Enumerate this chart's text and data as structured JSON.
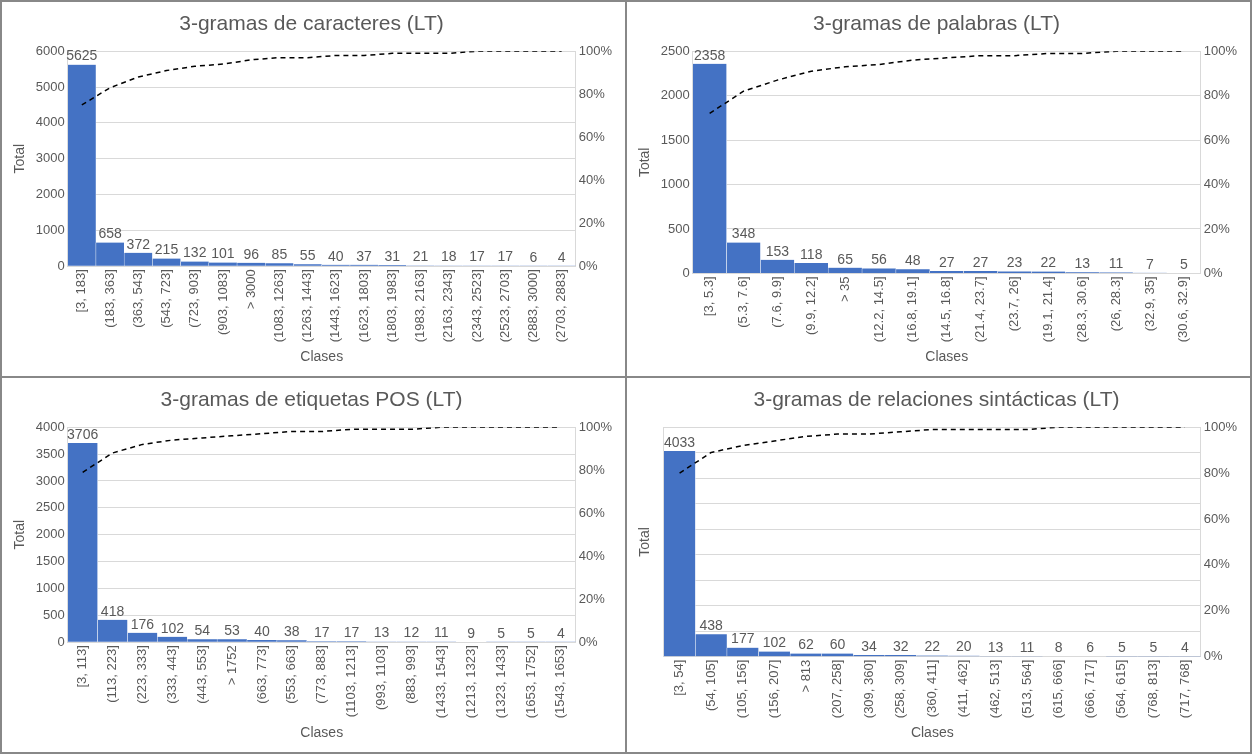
{
  "chart_data": [
    {
      "type": "bar",
      "title": "3-gramas de caracteres (LT)",
      "xlabel": "Clases",
      "ylabel": "Total",
      "grid": "y",
      "legend": false,
      "categories": [
        "[3, 183]",
        "(183, 363]",
        "(363, 543]",
        "(543, 723]",
        "(723, 903]",
        "(903, 1083]",
        "> 3000",
        "(1083, 1263]",
        "(1263, 1443]",
        "(1443, 1623]",
        "(1623, 1803]",
        "(1803, 1983]",
        "(1983, 2163]",
        "(2163, 2343]",
        "(2343, 2523]",
        "(2523, 2703]",
        "(2883, 3000]",
        "(2703, 2883]"
      ],
      "series": [
        {
          "type": "bar",
          "color": "#4472c4",
          "values": [
            5625,
            658,
            372,
            215,
            132,
            101,
            96,
            85,
            55,
            40,
            37,
            31,
            21,
            18,
            17,
            17,
            6,
            4
          ],
          "value_labels": [
            "5625",
            "658",
            "372",
            "215",
            "132",
            "101",
            "96",
            "85",
            "55",
            "40",
            "37",
            "31",
            "21",
            "18",
            "17",
            "17",
            "6",
            "4"
          ]
        },
        {
          "type": "line",
          "axis": "y2",
          "color": "#000000",
          "line_style": "dashed",
          "marker": "none",
          "values": [
            75,
            83,
            88,
            91,
            93,
            94,
            96,
            97,
            97,
            98,
            98,
            99,
            99,
            99,
            100,
            100,
            100,
            100
          ]
        }
      ],
      "ylim": [
        0,
        6000
      ],
      "yticks": [
        0,
        1000,
        2000,
        3000,
        4000,
        5000,
        6000
      ],
      "y2lim": [
        0,
        100
      ],
      "y2ticks": [
        {
          "value": 0,
          "label": "0%"
        },
        {
          "value": 20,
          "label": "20%"
        },
        {
          "value": 40,
          "label": "40%"
        },
        {
          "value": 60,
          "label": "60%"
        },
        {
          "value": 80,
          "label": "80%"
        },
        {
          "value": 100,
          "label": "100%"
        }
      ]
    },
    {
      "type": "bar",
      "title": "3-gramas de palabras (LT)",
      "xlabel": "Clases",
      "ylabel": "Total",
      "grid": "y",
      "legend": false,
      "categories": [
        "[3, 5.3]",
        "(5.3, 7.6]",
        "(7.6, 9.9]",
        "(9.9, 12.2]",
        "> 35",
        "(12.2, 14.5]",
        "(16.8, 19.1]",
        "(14.5, 16.8]",
        "(21.4, 23.7]",
        "(23.7, 26]",
        "(19.1, 21.4]",
        "(28.3, 30.6]",
        "(26, 28.3]",
        "(32.9, 35]",
        "(30.6, 32.9]"
      ],
      "series": [
        {
          "type": "bar",
          "color": "#4472c4",
          "values": [
            2358,
            348,
            153,
            118,
            65,
            56,
            48,
            27,
            27,
            23,
            22,
            13,
            11,
            7,
            5
          ],
          "value_labels": [
            "2358",
            "348",
            "153",
            "118",
            "65",
            "56",
            "48",
            "27",
            "27",
            "23",
            "22",
            "13",
            "11",
            "7",
            "5"
          ]
        },
        {
          "type": "line",
          "axis": "y2",
          "color": "#000000",
          "line_style": "dashed",
          "marker": "none",
          "values": [
            72,
            82,
            87,
            91,
            93,
            94,
            96,
            97,
            98,
            98,
            99,
            99,
            100,
            100,
            100
          ]
        }
      ],
      "ylim": [
        0,
        2500
      ],
      "yticks": [
        0,
        500,
        1000,
        1500,
        2000,
        2500
      ],
      "y2lim": [
        0,
        100
      ],
      "y2ticks": [
        {
          "value": 0,
          "label": "0%"
        },
        {
          "value": 20,
          "label": "20%"
        },
        {
          "value": 40,
          "label": "40%"
        },
        {
          "value": 60,
          "label": "60%"
        },
        {
          "value": 80,
          "label": "80%"
        },
        {
          "value": 100,
          "label": "100%"
        }
      ]
    },
    {
      "type": "bar",
      "title": "3-gramas de etiquetas POS (LT)",
      "xlabel": "Clases",
      "ylabel": "Total",
      "grid": "y",
      "legend": false,
      "categories": [
        "[3, 113]",
        "(113, 223]",
        "(223, 333]",
        "(333, 443]",
        "(443, 553]",
        "> 1752",
        "(663, 773]",
        "(553, 663]",
        "(773, 883]",
        "(1103, 1213]",
        "(993, 1103]",
        "(883, 993]",
        "(1433, 1543]",
        "(1213, 1323]",
        "(1323, 1433]",
        "(1653, 1752]",
        "(1543, 1653]"
      ],
      "series": [
        {
          "type": "bar",
          "color": "#4472c4",
          "values": [
            3706,
            418,
            176,
            102,
            54,
            53,
            40,
            38,
            17,
            17,
            13,
            12,
            11,
            9,
            5,
            5,
            4
          ],
          "value_labels": [
            "3706",
            "418",
            "176",
            "102",
            "54",
            "53",
            "40",
            "38",
            "17",
            "17",
            "13",
            "12",
            "11",
            "9",
            "5",
            "5",
            "4"
          ]
        },
        {
          "type": "line",
          "axis": "y2",
          "color": "#000000",
          "line_style": "dashed",
          "marker": "none",
          "values": [
            79,
            88,
            92,
            94,
            95,
            96,
            97,
            98,
            98,
            99,
            99,
            99,
            100,
            100,
            100,
            100,
            100
          ]
        }
      ],
      "ylim": [
        0,
        4000
      ],
      "yticks": [
        0,
        500,
        1000,
        1500,
        2000,
        2500,
        3000,
        3500,
        4000
      ],
      "y2lim": [
        0,
        100
      ],
      "y2ticks": [
        {
          "value": 0,
          "label": "0%"
        },
        {
          "value": 20,
          "label": "20%"
        },
        {
          "value": 40,
          "label": "40%"
        },
        {
          "value": 60,
          "label": "60%"
        },
        {
          "value": 80,
          "label": "80%"
        },
        {
          "value": 100,
          "label": "100%"
        }
      ]
    },
    {
      "type": "bar",
      "title": "3-gramas de relaciones sintácticas (LT)",
      "xlabel": "Clases",
      "ylabel": "Total",
      "grid": "y",
      "legend": false,
      "categories": [
        "[3, 54]",
        "(54, 105]",
        "(105, 156]",
        "(156, 207]",
        "> 813",
        "(207, 258]",
        "(309, 360]",
        "(258, 309]",
        "(360, 411]",
        "(411, 462]",
        "(462, 513]",
        "(513, 564]",
        "(615, 666]",
        "(666, 717]",
        "(564, 615]",
        "(768, 813]",
        "(717, 768]"
      ],
      "series": [
        {
          "type": "bar",
          "color": "#4472c4",
          "values": [
            4033,
            438,
            177,
            102,
            62,
            60,
            34,
            32,
            22,
            20,
            13,
            11,
            8,
            6,
            5,
            5,
            4
          ],
          "value_labels": [
            "4033",
            "438",
            "177",
            "102",
            "62",
            "60",
            "34",
            "32",
            "22",
            "20",
            "13",
            "11",
            "8",
            "6",
            "5",
            "5",
            "4"
          ]
        },
        {
          "type": "line",
          "axis": "y2",
          "color": "#000000",
          "line_style": "dashed",
          "marker": "none",
          "values": [
            80,
            89,
            92,
            94,
            96,
            97,
            97,
            98,
            99,
            99,
            99,
            99,
            100,
            100,
            100,
            100,
            100
          ]
        }
      ],
      "ylim": [
        0,
        4500
      ],
      "y2lim": [
        0,
        100
      ],
      "y2ticks": [
        {
          "value": 0,
          "label": "0%"
        },
        {
          "value": 20,
          "label": "20%"
        },
        {
          "value": 40,
          "label": "40%"
        },
        {
          "value": 60,
          "label": "60%"
        },
        {
          "value": 80,
          "label": "80%"
        },
        {
          "value": 100,
          "label": "100%"
        }
      ]
    }
  ]
}
